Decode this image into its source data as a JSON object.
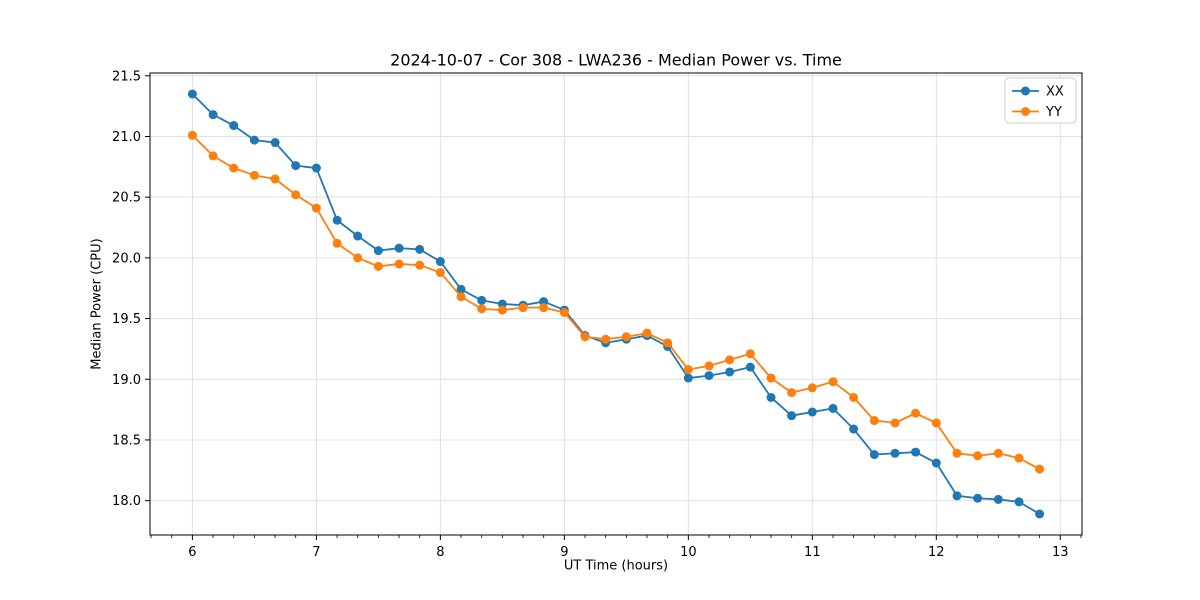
{
  "chart_data": {
    "type": "line",
    "title": "2024-10-07 - Cor 308 - LWA236 - Median Power vs. Time",
    "xlabel": "UT Time (hours)",
    "ylabel": "Median Power (CPU)",
    "x": [
      6.0,
      6.167,
      6.333,
      6.5,
      6.667,
      6.833,
      7.0,
      7.167,
      7.333,
      7.5,
      7.667,
      7.833,
      8.0,
      8.167,
      8.333,
      8.5,
      8.667,
      8.833,
      9.0,
      9.167,
      9.333,
      9.5,
      9.667,
      9.833,
      10.0,
      10.167,
      10.333,
      10.5,
      10.667,
      10.833,
      11.0,
      11.167,
      11.333,
      11.5,
      11.667,
      11.833,
      12.0,
      12.167,
      12.333,
      12.5,
      12.667,
      12.833
    ],
    "series": [
      {
        "name": "XX",
        "color": "#1f77b4",
        "values": [
          21.35,
          21.18,
          21.09,
          20.97,
          20.95,
          20.76,
          20.74,
          20.31,
          20.18,
          20.06,
          20.08,
          20.07,
          19.97,
          19.74,
          19.65,
          19.62,
          19.61,
          19.64,
          19.57,
          19.36,
          19.3,
          19.33,
          19.36,
          19.27,
          19.01,
          19.03,
          19.06,
          19.1,
          18.85,
          18.7,
          18.73,
          18.76,
          18.59,
          18.38,
          18.39,
          18.4,
          18.31,
          18.04,
          18.02,
          18.01,
          17.99,
          17.89
        ]
      },
      {
        "name": "YY",
        "color": "#ff7f0e",
        "values": [
          21.01,
          20.84,
          20.74,
          20.68,
          20.65,
          20.52,
          20.41,
          20.12,
          20.0,
          19.93,
          19.95,
          19.94,
          19.88,
          19.68,
          19.58,
          19.57,
          19.59,
          19.59,
          19.55,
          19.35,
          19.33,
          19.35,
          19.38,
          19.3,
          19.08,
          19.11,
          19.16,
          19.21,
          19.01,
          18.89,
          18.93,
          18.98,
          18.85,
          18.66,
          18.64,
          18.72,
          18.64,
          18.39,
          18.37,
          18.39,
          18.35,
          18.26
        ]
      }
    ],
    "xlim": [
      5.658,
      13.175
    ],
    "ylim": [
      17.717,
      21.523
    ],
    "xticks": [
      6,
      7,
      8,
      9,
      10,
      11,
      12,
      13
    ],
    "yticks": [
      18.0,
      18.5,
      19.0,
      19.5,
      20.0,
      20.5,
      21.0,
      21.5
    ],
    "x_minor_tick_step": 0.166667,
    "grid": true,
    "grid_color": "#e0e0e0",
    "axes_color": "#000000",
    "background_color": "#ffffff",
    "marker": "circle",
    "marker_size": 4.5,
    "line_width": 1.8,
    "legend": {
      "position": "upper right",
      "entries": [
        "XX",
        "YY"
      ]
    }
  }
}
